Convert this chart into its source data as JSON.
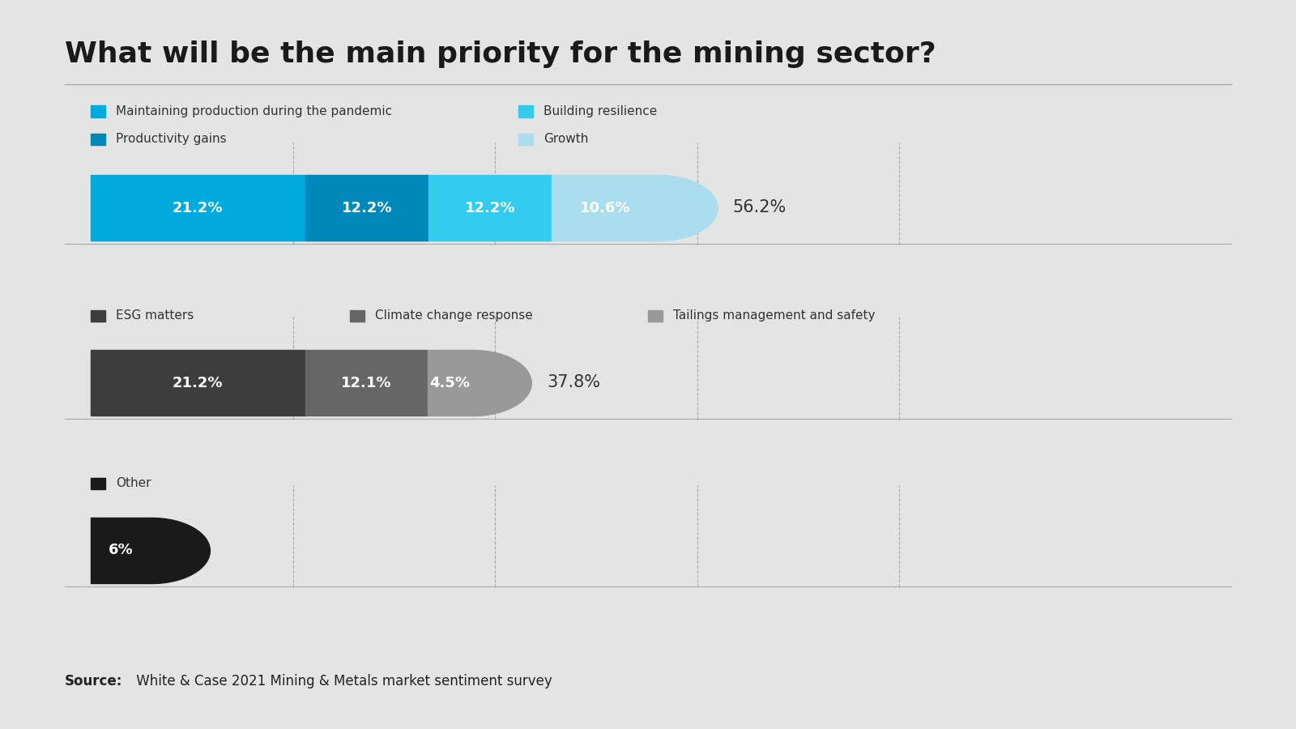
{
  "title": "What will be the main priority for the mining sector?",
  "background_color": "#e4e4e4",
  "source_bold": "Source:",
  "source_text": " White & Case 2021 Mining & Metals market sentiment survey",
  "row1_legend": [
    {
      "label": "Maintaining production during the pandemic",
      "color": "#00aadd"
    },
    {
      "label": "Building resilience",
      "color": "#33ccee"
    },
    {
      "label": "Productivity gains",
      "color": "#0088bb"
    },
    {
      "label": "Growth",
      "color": "#aadeee"
    }
  ],
  "row1_segments": [
    {
      "value": 21.2,
      "color": "#00aadd",
      "label": "21.2%",
      "text_color": "#ffffff"
    },
    {
      "value": 12.2,
      "color": "#0088bb",
      "label": "12.2%",
      "text_color": "#ffffff"
    },
    {
      "value": 12.2,
      "color": "#33ccee",
      "label": "12.2%",
      "text_color": "#ffffff"
    },
    {
      "value": 10.6,
      "color": "#aadeee",
      "label": "10.6%",
      "text_color": "#ffffff"
    }
  ],
  "row1_total_label": "56.2%",
  "row1_total": 56.2,
  "row2_legend": [
    {
      "label": "ESG matters",
      "color": "#3d3d3d"
    },
    {
      "label": "Climate change response",
      "color": "#666666"
    },
    {
      "label": "Tailings management and safety",
      "color": "#999999"
    }
  ],
  "row2_segments": [
    {
      "value": 21.2,
      "color": "#3d3d3d",
      "label": "21.2%",
      "text_color": "#ffffff"
    },
    {
      "value": 12.1,
      "color": "#666666",
      "label": "12.1%",
      "text_color": "#ffffff"
    },
    {
      "value": 4.5,
      "color": "#999999",
      "label": "4.5%",
      "text_color": "#ffffff"
    }
  ],
  "row2_total_label": "37.8%",
  "row2_total": 37.8,
  "row3_legend": [
    {
      "label": "Other",
      "color": "#1a1a1a"
    }
  ],
  "row3_segments": [
    {
      "value": 6.0,
      "color": "#1a1a1a",
      "label": "6%",
      "text_color": "#ffffff"
    }
  ],
  "row3_total_label": null,
  "row3_total": 6.0,
  "max_value": 100,
  "grid_vals": [
    20,
    40,
    60,
    80
  ]
}
